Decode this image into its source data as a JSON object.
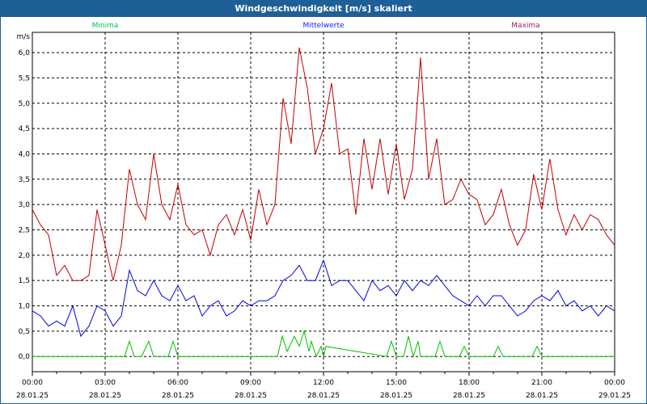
{
  "window": {
    "title": "Windgeschwindigkeit [m/s] skaliert"
  },
  "chart_data": {
    "type": "line",
    "title": "Windgeschwindigkeit [m/s] skaliert",
    "ylabel": "m/s",
    "xlabel": "",
    "ylim": [
      -0.3,
      6.4
    ],
    "xlim_hours": [
      0,
      24
    ],
    "grid": true,
    "legend_placement": "top",
    "yticks": [
      {
        "v": 0,
        "label": "0,0"
      },
      {
        "v": 0.5,
        "label": "0,5"
      },
      {
        "v": 1,
        "label": "1,0"
      },
      {
        "v": 1.5,
        "label": "1,5"
      },
      {
        "v": 2,
        "label": "2,0"
      },
      {
        "v": 2.5,
        "label": "2,5"
      },
      {
        "v": 3,
        "label": "3,0"
      },
      {
        "v": 3.5,
        "label": "3,5"
      },
      {
        "v": 4,
        "label": "4,0"
      },
      {
        "v": 4.5,
        "label": "4,5"
      },
      {
        "v": 5,
        "label": "5,0"
      },
      {
        "v": 5.5,
        "label": "5,5"
      },
      {
        "v": 6,
        "label": "6,0"
      }
    ],
    "xticks": [
      {
        "h": 0,
        "time": "00:00",
        "date": "28.01.25"
      },
      {
        "h": 3,
        "time": "03:00",
        "date": "28.01.25"
      },
      {
        "h": 6,
        "time": "06:00",
        "date": "28.01.25"
      },
      {
        "h": 9,
        "time": "09:00",
        "date": "28.01.25"
      },
      {
        "h": 12,
        "time": "12:00",
        "date": "28.01.25"
      },
      {
        "h": 15,
        "time": "15:00",
        "date": "28.01.25"
      },
      {
        "h": 18,
        "time": "18:00",
        "date": "28.01.25"
      },
      {
        "h": 21,
        "time": "21:00",
        "date": "28.01.25"
      },
      {
        "h": 24,
        "time": "00:00",
        "date": "29.01.25"
      }
    ],
    "series": [
      {
        "name": "Minima",
        "color": "#00c000",
        "legend_color": "#00c060",
        "x": [
          0,
          3.8,
          4.0,
          4.2,
          4.5,
          4.8,
          5.0,
          5.6,
          5.8,
          6.0,
          10.1,
          10.3,
          10.5,
          10.8,
          11.0,
          11.2,
          11.4,
          11.5,
          11.7,
          11.9,
          12.0,
          12.1,
          14.6,
          14.8,
          15.0,
          15.3,
          15.5,
          15.7,
          15.9,
          16.0,
          16.1,
          16.6,
          16.8,
          17.0,
          17.6,
          17.8,
          18.0,
          19.0,
          19.2,
          19.4,
          20.6,
          20.8,
          21.0,
          24
        ],
        "y": [
          0,
          0,
          0.3,
          0,
          0,
          0.3,
          0,
          0,
          0.3,
          0,
          0,
          0.4,
          0.1,
          0.4,
          0.2,
          0.5,
          0.1,
          0.3,
          0,
          0.2,
          0,
          0.2,
          0,
          0.3,
          0,
          0,
          0.4,
          0,
          0.3,
          0,
          0,
          0,
          0.3,
          0,
          0,
          0.2,
          0,
          0,
          0.2,
          0,
          0,
          0.2,
          0,
          0
        ]
      },
      {
        "name": "Mittelwerte",
        "color": "#0000e0",
        "legend_color": "#2020ff",
        "step_hours": 0.3333,
        "y": [
          0.9,
          0.8,
          0.6,
          0.7,
          0.6,
          1.0,
          0.4,
          0.6,
          1.0,
          0.9,
          0.6,
          0.8,
          1.7,
          1.3,
          1.2,
          1.5,
          1.2,
          1.1,
          1.4,
          1.1,
          1.2,
          0.8,
          1.0,
          1.1,
          0.8,
          0.9,
          1.1,
          1.0,
          1.1,
          1.1,
          1.2,
          1.5,
          1.6,
          1.8,
          1.5,
          1.5,
          1.9,
          1.4,
          1.5,
          1.5,
          1.3,
          1.1,
          1.5,
          1.3,
          1.4,
          1.2,
          1.5,
          1.3,
          1.5,
          1.4,
          1.6,
          1.4,
          1.2,
          1.1,
          1.0,
          1.2,
          1.0,
          1.2,
          1.2,
          1.0,
          0.8,
          0.9,
          1.1,
          1.2,
          1.1,
          1.3,
          1.0,
          1.1,
          0.9,
          1.0,
          0.8,
          1.0,
          0.9
        ]
      },
      {
        "name": "Maxima",
        "color": "#c00000",
        "legend_color": "#a02060",
        "step_hours": 0.3333,
        "y": [
          2.9,
          2.6,
          2.4,
          1.6,
          1.8,
          1.5,
          1.5,
          1.6,
          2.9,
          2.2,
          1.5,
          2.2,
          3.7,
          3.0,
          2.7,
          4.0,
          3.0,
          2.7,
          3.4,
          2.6,
          2.4,
          2.5,
          2.0,
          2.6,
          2.8,
          2.4,
          2.9,
          2.3,
          3.3,
          2.6,
          3.0,
          5.1,
          4.2,
          6.1,
          5.3,
          4.0,
          4.5,
          5.4,
          4.0,
          4.1,
          2.8,
          4.3,
          3.3,
          4.3,
          3.2,
          4.2,
          3.1,
          3.7,
          5.9,
          3.5,
          4.3,
          3.0,
          3.1,
          3.5,
          3.2,
          3.1,
          2.6,
          2.8,
          3.3,
          2.6,
          2.2,
          2.5,
          3.6,
          2.9,
          3.9,
          2.9,
          2.4,
          2.8,
          2.5,
          2.8,
          2.7,
          2.4,
          2.2
        ]
      }
    ]
  }
}
